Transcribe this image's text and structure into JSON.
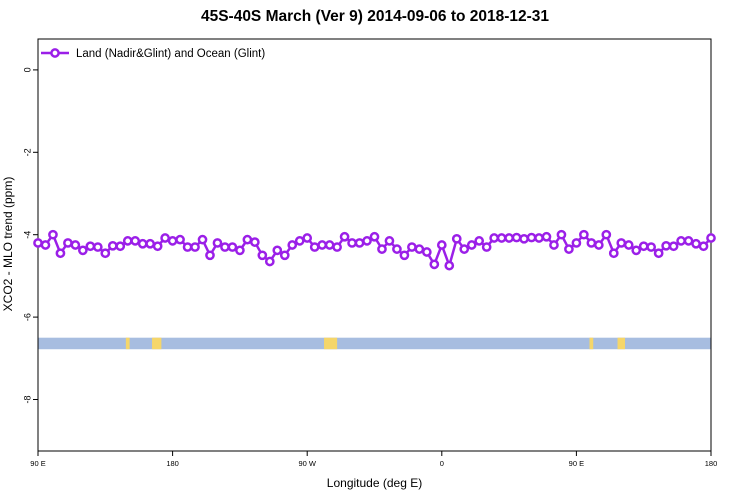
{
  "chart_data": {
    "type": "line",
    "title": "45S-40S March (Ver 9)   2014-09-06 to 2018-12-31",
    "xlabel": "Longitude (deg E)",
    "ylabel": "XCO2 - MLO trend (ppm)",
    "xlim": [
      90,
      450
    ],
    "ylim": [
      -9.25,
      0.75
    ],
    "x_tick_values": [
      90,
      162,
      234,
      306,
      378,
      450
    ],
    "x_tick_labels": [
      "90 E",
      "180",
      "90 W",
      "0",
      "90 E",
      "180"
    ],
    "y_ticks": [
      0,
      -2,
      -4,
      -6,
      -8
    ],
    "legend": {
      "position": "top-left",
      "label": "Land (Nadir&Glint) and Ocean (Glint)"
    },
    "colors": {
      "series": "#9b1fe8",
      "ocean": "#a7bde0",
      "land": "#f5d66a"
    },
    "grid": false,
    "series": [
      {
        "name": "Land (Nadir&Glint) and Ocean (Glint)",
        "x": [
          90,
          94,
          98,
          102,
          106,
          110,
          114,
          118,
          122,
          126,
          130,
          134,
          138,
          142,
          146,
          150,
          154,
          158,
          162,
          166,
          170,
          174,
          178,
          182,
          186,
          190,
          194,
          198,
          202,
          206,
          210,
          214,
          218,
          222,
          226,
          230,
          234,
          238,
          242,
          246,
          250,
          254,
          258,
          262,
          266,
          270,
          274,
          278,
          282,
          286,
          290,
          294,
          298,
          302,
          306,
          310,
          314,
          318,
          322,
          326,
          330,
          334,
          338,
          342,
          346,
          350,
          354,
          358,
          362,
          366,
          370,
          374,
          378,
          382,
          386,
          390,
          394,
          398,
          402,
          406,
          410,
          414,
          418,
          422,
          426,
          430,
          434,
          438,
          442,
          446,
          450
        ],
        "y": [
          -4.2,
          -4.25,
          -4.0,
          -4.45,
          -4.2,
          -4.25,
          -4.38,
          -4.28,
          -4.3,
          -4.45,
          -4.27,
          -4.28,
          -4.15,
          -4.15,
          -4.22,
          -4.22,
          -4.28,
          -4.08,
          -4.15,
          -4.12,
          -4.3,
          -4.3,
          -4.12,
          -4.5,
          -4.2,
          -4.3,
          -4.3,
          -4.38,
          -4.12,
          -4.18,
          -4.5,
          -4.65,
          -4.38,
          -4.5,
          -4.25,
          -4.15,
          -4.08,
          -4.3,
          -4.25,
          -4.25,
          -4.3,
          -4.05,
          -4.2,
          -4.2,
          -4.15,
          -4.05,
          -4.35,
          -4.15,
          -4.35,
          -4.5,
          -4.3,
          -4.35,
          -4.42,
          -4.72,
          -4.25,
          -4.75,
          -4.1,
          -4.35,
          -4.25,
          -4.15,
          -4.3,
          -4.08,
          -4.08,
          -4.08,
          -4.07,
          -4.1,
          -4.07,
          -4.08,
          -4.05,
          -4.25,
          -4.0,
          -4.35,
          -4.2,
          -4.0,
          -4.2,
          -4.25,
          -4.0,
          -4.45,
          -4.2,
          -4.25,
          -4.38,
          -4.28,
          -4.3,
          -4.45,
          -4.27,
          -4.28,
          -4.15,
          -4.15,
          -4.22,
          -4.28,
          -4.08
        ]
      }
    ],
    "surface_band": {
      "y_top": -6.5,
      "y_bottom": -6.78,
      "land_x": [
        [
          137,
          139
        ],
        [
          151,
          156
        ],
        [
          243,
          250
        ],
        [
          385,
          387
        ],
        [
          400,
          404
        ]
      ]
    }
  }
}
